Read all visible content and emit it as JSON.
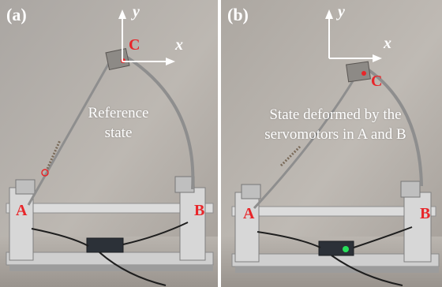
{
  "panels": [
    {
      "id": "a",
      "label": "(a)",
      "state_lines": [
        "Reference",
        "state"
      ],
      "axis_x": "x",
      "axis_y": "y",
      "point_c": "C",
      "point_a": "A",
      "point_b": "B"
    },
    {
      "id": "b",
      "label": "(b)",
      "state_lines": [
        "State deformed by the",
        "servomotors in A and B"
      ],
      "axis_x": "x",
      "axis_y": "y",
      "point_c": "C",
      "point_a": "A",
      "point_b": "B"
    }
  ],
  "colors": {
    "marker_red": "#e8262a",
    "background_wall": "#b9b3ad",
    "frame_aluminum": "#d9d9d9",
    "led_green": "#27e05a"
  }
}
